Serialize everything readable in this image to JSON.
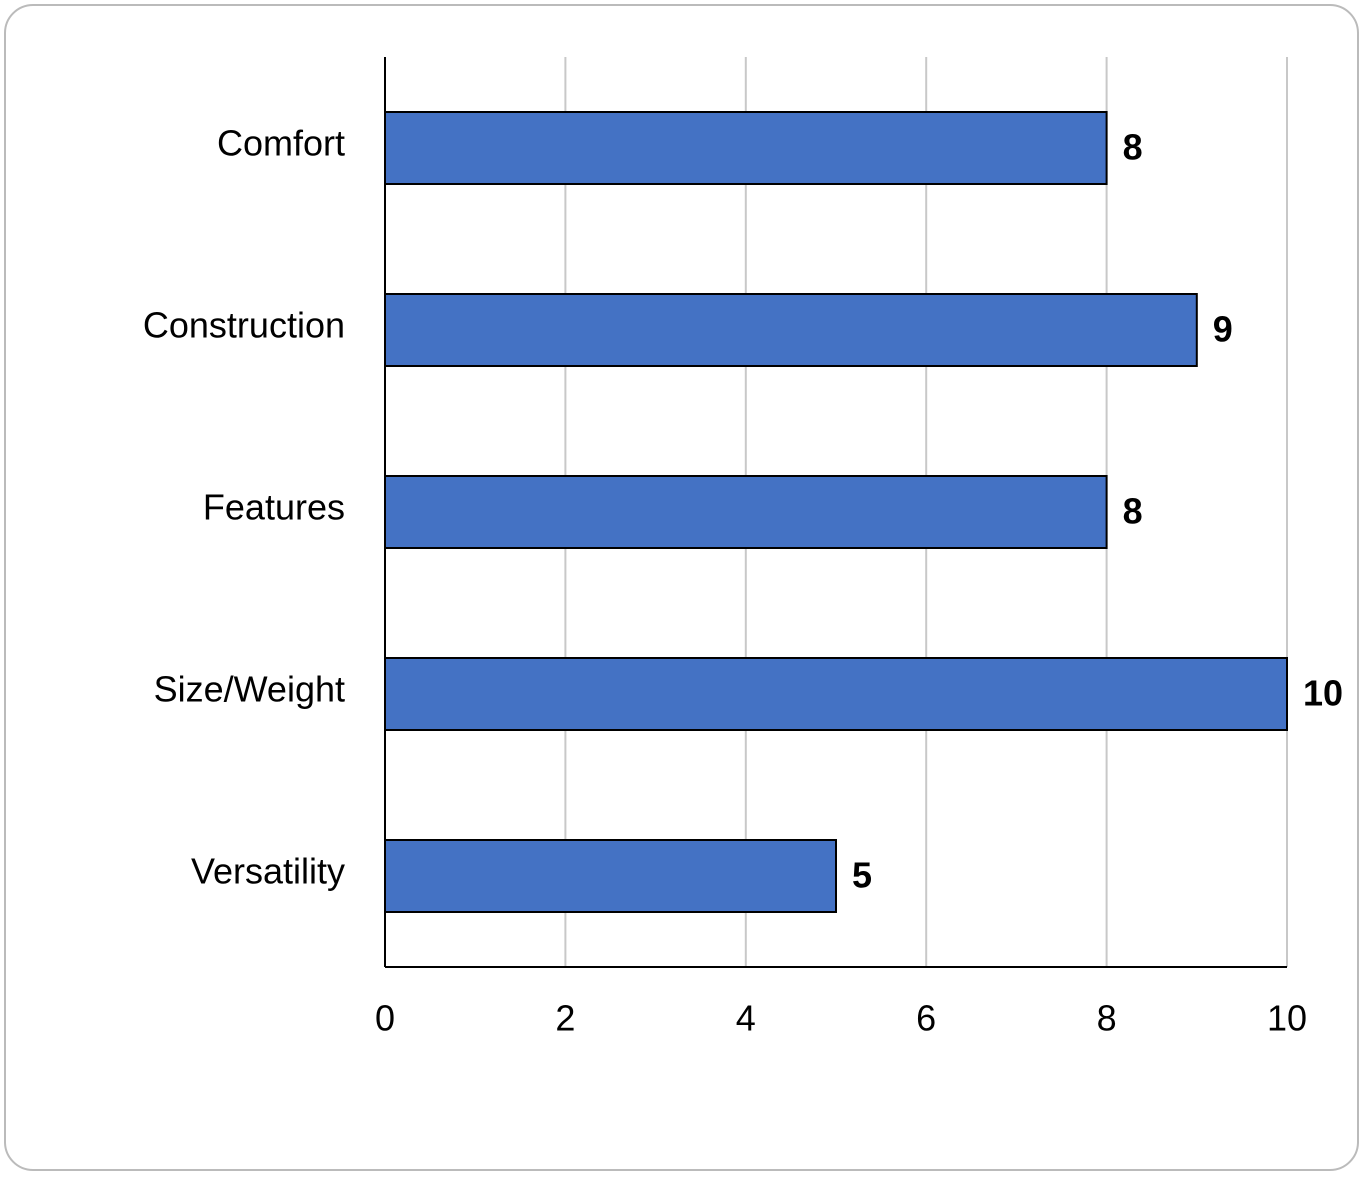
{
  "chart_data": {
    "type": "bar",
    "orientation": "horizontal",
    "categories": [
      "Comfort",
      "Construction",
      "Features",
      "Size/Weight",
      "Versatility"
    ],
    "values": [
      8,
      9,
      8,
      10,
      5
    ],
    "color": "#4472c4",
    "xlim": [
      0,
      10
    ],
    "xticks": [
      0,
      2,
      4,
      6,
      8,
      10
    ],
    "grid": true
  }
}
